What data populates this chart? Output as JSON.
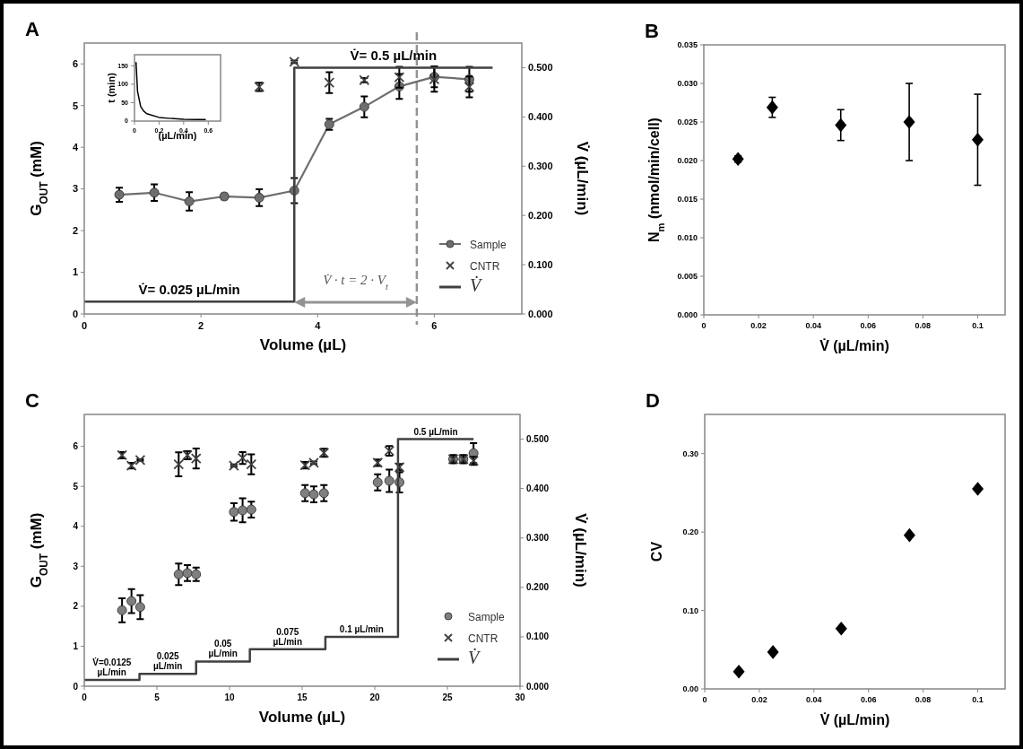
{
  "chart_data": [
    {
      "type": "line",
      "title": "A",
      "xlabel": "Volume (µL)",
      "ylabel": "G$_{OUT}$ (mM)",
      "y2label": "V̇ (µL/min)",
      "xlim": [
        0,
        7.5
      ],
      "xticks": [
        0,
        2,
        4,
        6
      ],
      "ylim": [
        0,
        6.5
      ],
      "yticks": [
        0,
        1,
        2,
        3,
        4,
        5,
        6
      ],
      "y2lim": [
        0,
        0.55
      ],
      "y2ticks": [
        {
          "value": 0,
          "label": "0.000"
        },
        {
          "value": 0.1,
          "label": "0.100"
        },
        {
          "value": 0.2,
          "label": "0.200"
        },
        {
          "value": 0.3,
          "label": "0.300"
        },
        {
          "value": 0.4,
          "label": "0.400"
        },
        {
          "value": 0.5,
          "label": "0.500"
        }
      ],
      "legend": "bottom right",
      "grid": false,
      "ref_lines": [
        {
          "axis": "x",
          "value": 5.7,
          "color": "#939393",
          "line_style": "dashed"
        }
      ],
      "annotations": [
        "V̇= 0.025 µL/min",
        "V̇= 0.5 µL/min",
        "V̇ · t = 2 · V$_{t}$"
      ],
      "series": [
        {
          "name": "Sample",
          "marker": "circle",
          "color": "#6e6e6e",
          "x": [
            0.6,
            1.2,
            1.8,
            2.4,
            3.0,
            3.6,
            4.2,
            4.8,
            5.4,
            6.0,
            6.6
          ],
          "values": [
            2.86,
            2.91,
            2.7,
            2.82,
            2.79,
            2.96,
            4.55,
            4.97,
            5.46,
            5.69,
            5.63
          ],
          "errors": [
            0.17,
            0.2,
            0.22,
            0.07,
            0.2,
            0.3,
            0.13,
            0.25,
            0.3,
            0.25,
            0.3
          ]
        },
        {
          "name": "CNTR",
          "type": "scatter",
          "marker": "cross",
          "color": "#404040",
          "x": [
            3.0,
            3.6,
            4.2,
            4.8,
            5.4,
            6.0,
            6.6
          ],
          "values": [
            5.45,
            6.05,
            5.55,
            5.61,
            5.68,
            5.63,
            5.45
          ],
          "errors": [
            0.1,
            0.03,
            0.25,
            0.05,
            0.25,
            0.3,
            0.25
          ]
        },
        {
          "name": "V̇",
          "type": "step",
          "axis": "y2",
          "color": "#404040",
          "x": [
            0,
            3.6,
            7.0
          ],
          "values": [
            0.025,
            0.5,
            0.5
          ]
        }
      ]
    },
    {
      "type": "line",
      "xlabel": "(µL/min)",
      "ylabel": "t (min)",
      "xlim": [
        0,
        0.7
      ],
      "xticks": [
        0,
        0.2,
        0.4,
        0.6
      ],
      "ylim": [
        0,
        180
      ],
      "yticks": [
        0,
        50,
        100,
        150
      ],
      "grid": false,
      "series": [
        {
          "color": "#000000",
          "x": [
            0.0125,
            0.025,
            0.05,
            0.075,
            0.1,
            0.2,
            0.3,
            0.4,
            0.5,
            0.58
          ],
          "values": [
            160,
            80,
            40,
            27,
            20,
            10,
            7,
            5,
            4,
            4
          ]
        }
      ]
    },
    {
      "type": "scatter",
      "title": "B",
      "xlabel": "V̇ (µL/min)",
      "ylabel": "N$_{m}$ (nmol/min/cell)",
      "marker": "diamond",
      "xlim": [
        0,
        0.11
      ],
      "xticks": [
        0,
        0.02,
        0.04,
        0.06,
        0.08,
        0.1
      ],
      "ylim": [
        0,
        0.035
      ],
      "yticks": [
        {
          "value": 0,
          "label": "0.000"
        },
        {
          "value": 0.005,
          "label": "0.005"
        },
        {
          "value": 0.01,
          "label": "0.010"
        },
        {
          "value": 0.015,
          "label": "0.015"
        },
        {
          "value": 0.02,
          "label": "0.020"
        },
        {
          "value": 0.025,
          "label": "0.025"
        },
        {
          "value": 0.03,
          "label": "0.030"
        },
        {
          "value": 0.035,
          "label": "0.035"
        }
      ],
      "grid": false,
      "series": [
        {
          "color": "#000000",
          "x": [
            0.0125,
            0.025,
            0.05,
            0.075,
            0.1
          ],
          "values": [
            0.0202,
            0.0269,
            0.0246,
            0.025,
            0.0227
          ],
          "errors": [
            0.0004,
            0.0013,
            0.002,
            0.005,
            0.0059
          ]
        }
      ]
    },
    {
      "type": "scatter",
      "title": "C",
      "xlabel": "Volume (µL)",
      "ylabel": "G$_{OUT}$ (mM)",
      "y2label": "V̇ (µL/min)",
      "xlim": [
        0,
        30
      ],
      "xticks": [
        0,
        5,
        10,
        15,
        20,
        25,
        30
      ],
      "ylim": [
        0,
        6.8
      ],
      "yticks": [
        0,
        1,
        2,
        3,
        4,
        5,
        6
      ],
      "y2lim": [
        0,
        0.55
      ],
      "y2ticks": [
        {
          "value": 0,
          "label": "0.000"
        },
        {
          "value": 0.1,
          "label": "0.100"
        },
        {
          "value": 0.2,
          "label": "0.200"
        },
        {
          "value": 0.3,
          "label": "0.300"
        },
        {
          "value": 0.4,
          "label": "0.400"
        },
        {
          "value": 0.5,
          "label": "0.500"
        }
      ],
      "legend": "bottom right",
      "grid": false,
      "annotations": [
        "V̇=0.0125\nµL/min",
        "0.025\nµL/min",
        "0.05\nµL/min",
        "0.075\nµL/min",
        "0.1 µL/min",
        "0.5 µL/min"
      ],
      "series": [
        {
          "name": "Sample",
          "marker": "circle",
          "color": "#7f7f7f",
          "x": [
            2.6,
            3.25,
            3.85,
            6.5,
            7.1,
            7.7,
            10.3,
            10.9,
            11.5,
            15.2,
            15.8,
            16.5,
            20.2,
            21.0,
            21.7,
            25.4,
            26.1,
            26.8
          ],
          "values": [
            1.9,
            2.13,
            1.98,
            2.8,
            2.83,
            2.8,
            4.36,
            4.4,
            4.42,
            4.83,
            4.8,
            4.83,
            5.1,
            5.14,
            5.1,
            5.68,
            5.68,
            5.83
          ],
          "errors": [
            0.3,
            0.3,
            0.3,
            0.27,
            0.2,
            0.17,
            0.22,
            0.3,
            0.2,
            0.2,
            0.2,
            0.2,
            0.2,
            0.28,
            0.25,
            0.1,
            0.1,
            0.25
          ]
        },
        {
          "name": "CNTR",
          "marker": "cross",
          "color": "#404040",
          "x": [
            2.6,
            3.25,
            3.85,
            6.5,
            7.1,
            7.7,
            10.3,
            10.9,
            11.5,
            15.2,
            15.8,
            16.5,
            20.2,
            21.0,
            21.7,
            25.4,
            26.1,
            26.8
          ],
          "values": [
            5.78,
            5.52,
            5.66,
            5.55,
            5.78,
            5.7,
            5.52,
            5.71,
            5.55,
            5.53,
            5.59,
            5.84,
            5.59,
            5.89,
            5.48,
            5.68,
            5.68,
            5.64
          ],
          "errors": [
            0.08,
            0.07,
            0.02,
            0.3,
            0.1,
            0.25,
            0.03,
            0.15,
            0.25,
            0.08,
            0.03,
            0.1,
            0.08,
            0.12,
            0.08,
            0.1,
            0.1,
            0.1
          ]
        },
        {
          "name": "V̇",
          "type": "step",
          "axis": "y2",
          "color": "#404040",
          "x": [
            0,
            3.8,
            7.7,
            11.4,
            16.6,
            21.6,
            26.8
          ],
          "values": [
            0.0125,
            0.025,
            0.05,
            0.075,
            0.1,
            0.5,
            0.5
          ]
        }
      ]
    },
    {
      "type": "scatter",
      "title": "D",
      "xlabel": "V̇  (µL/min)",
      "ylabel": "CV",
      "marker": "diamond",
      "xlim": [
        0,
        0.11
      ],
      "xticks": [
        0,
        0.02,
        0.04,
        0.06,
        0.08,
        0.1
      ],
      "ylim": [
        0,
        0.35
      ],
      "yticks": [
        {
          "value": 0,
          "label": "0.00"
        },
        {
          "value": 0.1,
          "label": "0.10"
        },
        {
          "value": 0.2,
          "label": "0.20"
        },
        {
          "value": 0.3,
          "label": "0.30"
        }
      ],
      "grid": false,
      "series": [
        {
          "color": "#000000",
          "x": [
            0.0125,
            0.025,
            0.05,
            0.075,
            0.1
          ],
          "values": [
            0.022,
            0.047,
            0.077,
            0.196,
            0.255
          ]
        }
      ]
    }
  ]
}
